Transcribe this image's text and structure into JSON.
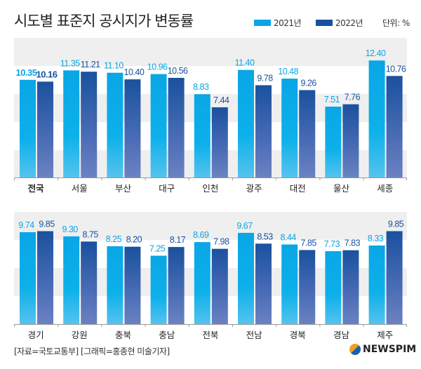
{
  "title": "시도별 표준지 공시지가 변동률",
  "unit": "단위: %",
  "source": "[자료=국토교통부] [그래픽=홍종현 미술기자]",
  "logo": "NEWSPIM",
  "colors": {
    "s2021": "#0aa6e6",
    "s2022": "#1a519e"
  },
  "chart_data": [
    {
      "type": "bar",
      "title": "시도별 표준지 공시지가 변동률",
      "ylabel": "%",
      "ylim": [
        0,
        14.5
      ],
      "legend": [
        "2021년",
        "2022년"
      ],
      "legend_position": "top-right",
      "categories": [
        "전국",
        "서울",
        "부산",
        "대구",
        "인천",
        "광주",
        "대전",
        "울산",
        "세종"
      ],
      "series": [
        {
          "name": "2021년",
          "values": [
            10.35,
            11.35,
            11.1,
            10.96,
            8.83,
            11.4,
            10.48,
            7.51,
            12.4
          ]
        },
        {
          "name": "2022년",
          "values": [
            10.16,
            11.21,
            10.4,
            10.56,
            7.44,
            9.78,
            9.26,
            7.76,
            10.76
          ]
        }
      ]
    },
    {
      "type": "bar",
      "ylabel": "%",
      "ylim": [
        0,
        11.5
      ],
      "categories": [
        "경기",
        "강원",
        "충북",
        "충남",
        "전북",
        "전남",
        "경북",
        "경남",
        "제주"
      ],
      "series": [
        {
          "name": "2021년",
          "values": [
            9.74,
            9.3,
            8.25,
            7.25,
            8.69,
            9.67,
            8.44,
            7.73,
            8.33
          ]
        },
        {
          "name": "2022년",
          "values": [
            9.85,
            8.75,
            8.2,
            8.17,
            7.98,
            8.53,
            7.85,
            7.83,
            9.85
          ]
        }
      ]
    }
  ]
}
